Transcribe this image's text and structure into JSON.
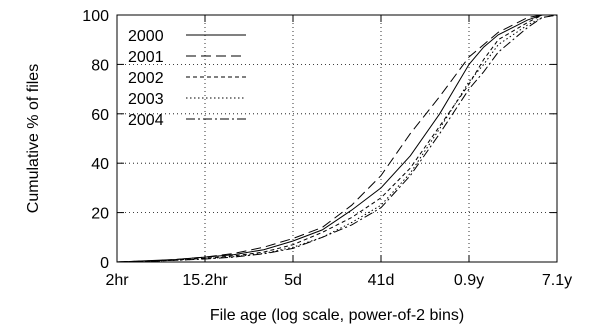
{
  "chart_data": {
    "type": "line",
    "title": "",
    "xlabel": "File age (log scale, power-of-2 bins)",
    "ylabel": "Cumulative % of files",
    "x_scale": "log2",
    "x_ticks": [
      "2hr",
      "15.2hr",
      "5d",
      "41d",
      "0.9y",
      "7.1y"
    ],
    "x_tick_positions": [
      0,
      3,
      6,
      9,
      12,
      15
    ],
    "x_range": [
      0,
      15
    ],
    "ylim": [
      0,
      100
    ],
    "y_ticks": [
      0,
      20,
      40,
      60,
      80,
      100
    ],
    "grid": true,
    "legend_position": "top-left",
    "series": [
      {
        "name": "2000",
        "dash": "",
        "x": [
          0,
          1,
          2,
          3,
          4,
          5,
          6,
          7,
          8,
          9,
          10,
          11,
          12,
          12.5,
          13,
          14,
          14.5,
          15
        ],
        "values": [
          0,
          0.5,
          1,
          2,
          3,
          5,
          8.5,
          13,
          21,
          30,
          43,
          60,
          80,
          87,
          92,
          98,
          100,
          100
        ]
      },
      {
        "name": "2001",
        "dash": "10,5",
        "x": [
          0,
          1,
          2,
          3,
          4,
          5,
          6,
          7,
          8,
          9,
          10,
          11,
          12,
          12.5,
          13,
          14,
          14.5,
          15
        ],
        "values": [
          0,
          0.4,
          1,
          2,
          3.5,
          6,
          9.5,
          14,
          23,
          35,
          52,
          67,
          83,
          88,
          93,
          99,
          100,
          100
        ]
      },
      {
        "name": "2002",
        "dash": "4,3",
        "x": [
          0,
          1,
          2,
          3,
          4,
          5,
          6,
          7,
          8,
          9,
          10,
          11,
          12,
          12.5,
          13,
          14,
          14.5,
          15
        ],
        "values": [
          0,
          0.4,
          0.8,
          1.5,
          2.5,
          4,
          7,
          12,
          18,
          26,
          38,
          55,
          72,
          82,
          90,
          97,
          100,
          100
        ]
      },
      {
        "name": "2003",
        "dash": "1.5,2.5",
        "x": [
          0,
          1,
          2,
          3,
          4,
          5,
          6,
          7,
          8,
          9,
          10,
          11,
          12,
          12.5,
          13,
          14,
          14.5,
          15
        ],
        "values": [
          0,
          0.3,
          0.7,
          1.3,
          2.2,
          3.5,
          6,
          10,
          16,
          23,
          36,
          54,
          73,
          80,
          88,
          96,
          99,
          100
        ]
      },
      {
        "name": "2004",
        "dash": "9,3,2,3",
        "x": [
          0,
          1,
          2,
          3,
          4,
          5,
          6,
          7,
          8,
          9,
          10,
          11,
          12,
          12.5,
          13,
          14,
          14.5,
          15
        ],
        "values": [
          0,
          0.3,
          0.7,
          1.2,
          2,
          3.3,
          5.5,
          10,
          15,
          22,
          35,
          52,
          70,
          77,
          85,
          95,
          99,
          100
        ]
      }
    ]
  }
}
